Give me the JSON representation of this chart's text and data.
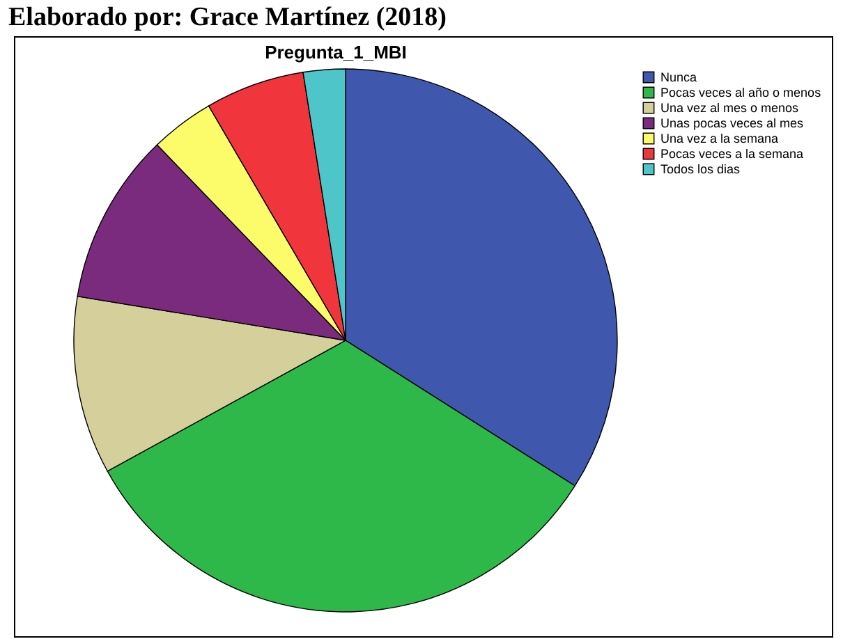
{
  "chart_data": {
    "type": "pie",
    "title": "Pregunta_1_MBI",
    "annotations": [
      "Elaborado por: Grace Martínez (2018)"
    ],
    "categories": [
      "Nunca",
      "Pocas  veces al año o menos",
      "Una vez al mes o menos",
      "Unas pocas veces al mes",
      "Una vez a la semana",
      "Pocas veces a la semana",
      "Todos los dias"
    ],
    "values": [
      34,
      33,
      10.6,
      10.2,
      3.8,
      5.9,
      2.5
    ],
    "colors": [
      "#3f58ae",
      "#2fb84a",
      "#d5cf9b",
      "#7b2b7e",
      "#fcfc6b",
      "#f0363c",
      "#4ec5c8"
    ],
    "legend": "top right"
  }
}
